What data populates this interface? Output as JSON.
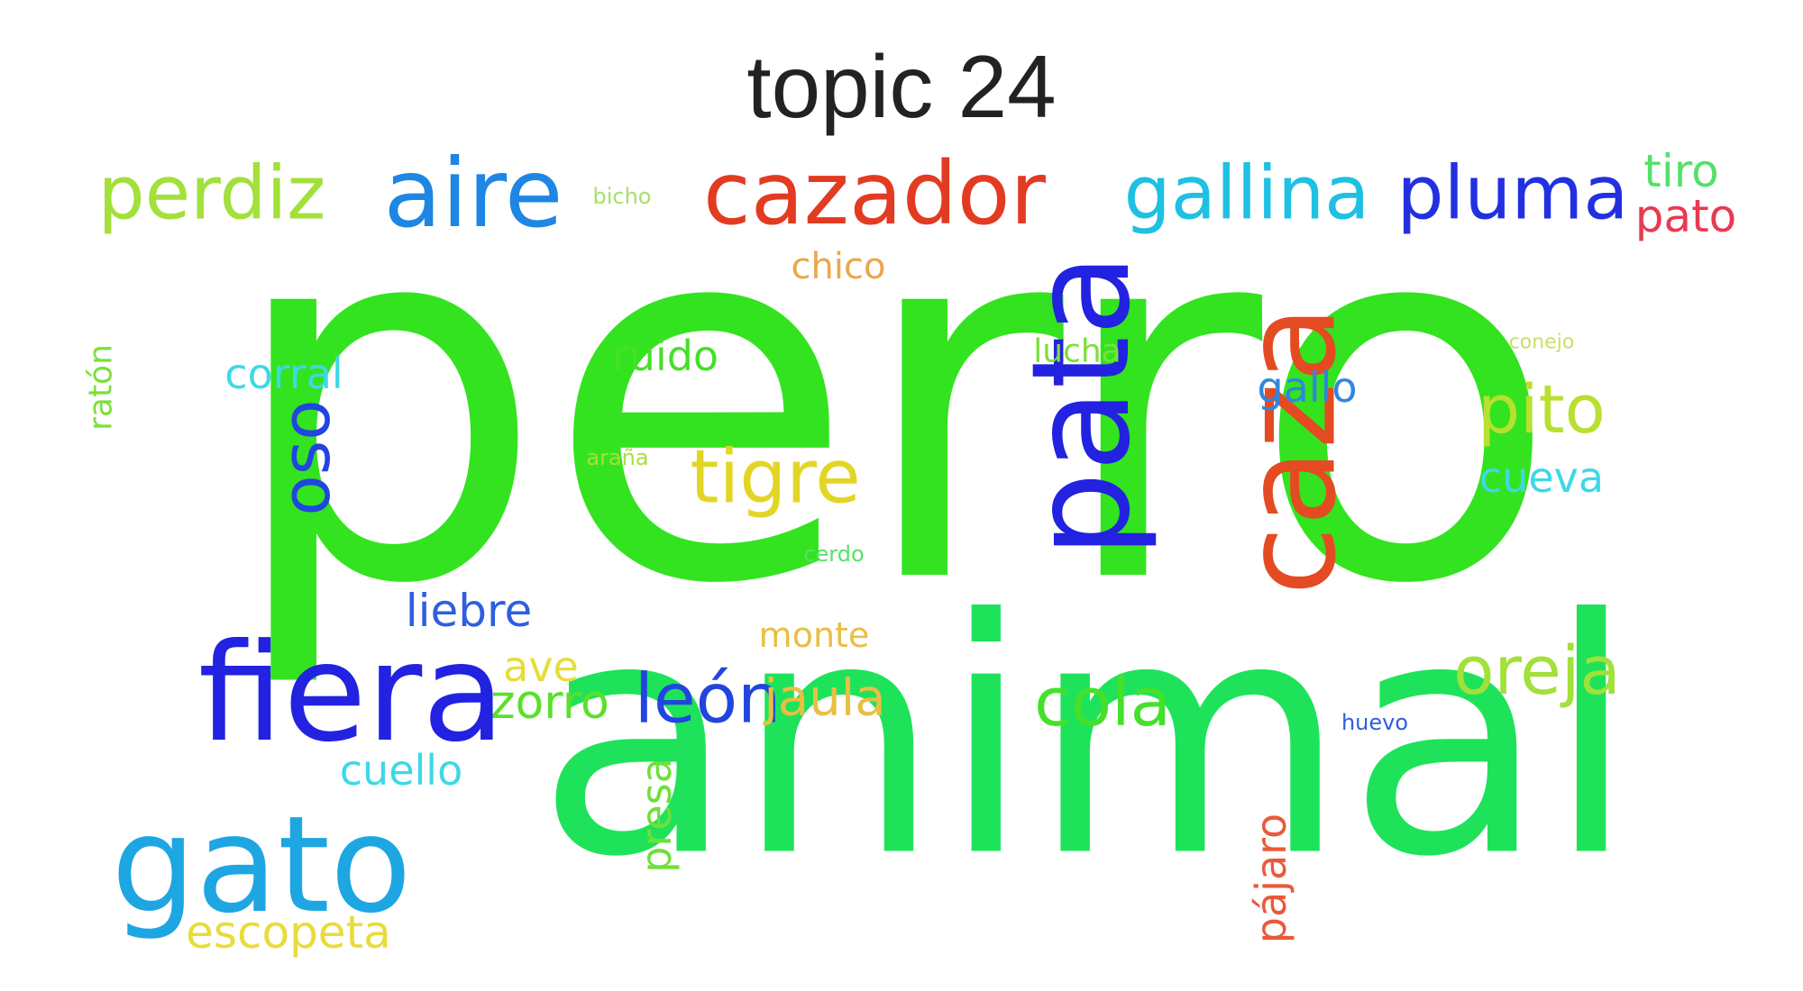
{
  "title": "topic 24",
  "words": [
    {
      "text": "perro",
      "color": "#33e31f"
    },
    {
      "text": "animal",
      "color": "#1ee35a"
    },
    {
      "text": "pata",
      "color": "#2222e0"
    },
    {
      "text": "caza",
      "color": "#e44b22"
    },
    {
      "text": "fiera",
      "color": "#2222e0"
    },
    {
      "text": "gato",
      "color": "#1ea6e3"
    },
    {
      "text": "cazador",
      "color": "#e33b22"
    },
    {
      "text": "aire",
      "color": "#1e86e3"
    },
    {
      "text": "gallina",
      "color": "#1ec0e3"
    },
    {
      "text": "pluma",
      "color": "#2230e0"
    },
    {
      "text": "perdiz",
      "color": "#a2e03a"
    },
    {
      "text": "tigre",
      "color": "#e3d526"
    },
    {
      "text": "oreja",
      "color": "#a2e03a"
    },
    {
      "text": "cola",
      "color": "#45e02a"
    },
    {
      "text": "león",
      "color": "#2244e0"
    },
    {
      "text": "oso",
      "color": "#2244e0"
    },
    {
      "text": "pito",
      "color": "#b8e030"
    },
    {
      "text": "zorro",
      "color": "#5ae02a"
    },
    {
      "text": "jaula",
      "color": "#e8bf45"
    },
    {
      "text": "liebre",
      "color": "#2f5ee0"
    },
    {
      "text": "escopeta",
      "color": "#e8dc3a"
    },
    {
      "text": "cuello",
      "color": "#3ed8e6"
    },
    {
      "text": "presa",
      "color": "#6ee03a"
    },
    {
      "text": "pájaro",
      "color": "#e85a3a"
    },
    {
      "text": "ave",
      "color": "#e8dc3a"
    },
    {
      "text": "corral",
      "color": "#3ed8e6"
    },
    {
      "text": "ruido",
      "color": "#45e02a"
    },
    {
      "text": "cueva",
      "color": "#3ed8e6"
    },
    {
      "text": "gallo",
      "color": "#2f86e0"
    },
    {
      "text": "monte",
      "color": "#e8bf45"
    },
    {
      "text": "chico",
      "color": "#e8a84a"
    },
    {
      "text": "tiro",
      "color": "#55e06a"
    },
    {
      "text": "pato",
      "color": "#e83a50"
    },
    {
      "text": "lucha",
      "color": "#7ae03a"
    },
    {
      "text": "ratón",
      "color": "#7ae03a"
    },
    {
      "text": "araña",
      "color": "#a6e03a"
    },
    {
      "text": "cerdo",
      "color": "#5ae06a"
    },
    {
      "text": "bicho",
      "color": "#a6e06a"
    },
    {
      "text": "conejo",
      "color": "#c8e06a"
    },
    {
      "text": "huevo",
      "color": "#2f5ee0"
    }
  ]
}
